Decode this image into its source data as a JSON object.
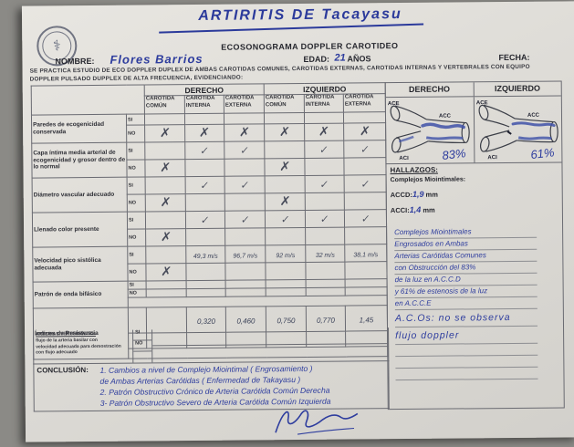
{
  "title_handwritten": "ARTIRITIS DE Tacayasu",
  "header": {
    "clinic_title": "ECOSONOGRAMA DOPPLER CAROTIDEO",
    "nombre_label": "NOMBRE:",
    "nombre_value": "Flores Barrios",
    "edad_label": "EDAD:",
    "edad_value": "21",
    "edad_suffix": "AÑOS",
    "fecha_label": "FECHA:",
    "procedure_text": "SE PRACTICA ESTUDIO DE ECO DOPPLER DUPLEX DE AMBAS CAROTIDAS COMUNES, CAROTIDAS EXTERNAS, CAROTIDAS INTERNAS Y VERTEBRALES CON EQUIPO DOPPLER PULSADO DUPPLEX DE ALTA FRECUENCIA, EVIDENCIANDO:"
  },
  "table": {
    "side_headers": [
      "DERECHO",
      "IZQUIERDO"
    ],
    "vessel_headers": [
      "CARÓTIDA COMÚN",
      "CARÓTIDA INTERNA",
      "CARÓTIDA EXTERNA",
      "CARÓTIDA COMÚN",
      "CARÓTIDA INTERNA",
      "CARÓTIDA EXTERNA"
    ],
    "si_label": "SI",
    "no_label": "NO",
    "rows": [
      {
        "label": "Paredes de ecogenicidad conservada",
        "si": [
          "",
          "",
          "",
          "",
          "",
          ""
        ],
        "no": [
          "✗",
          "✗",
          "✗",
          "✗",
          "✗",
          "✗"
        ]
      },
      {
        "label": "Capa íntima media arterial de ecogenicidad y grosor dentro de lo normal",
        "si": [
          "",
          "✓",
          "✓",
          "",
          "✓",
          "✓"
        ],
        "no": [
          "✗",
          "",
          "",
          "✗",
          "",
          ""
        ]
      },
      {
        "label": "Diámetro vascular adecuado",
        "si": [
          "",
          "✓",
          "✓",
          "",
          "✓",
          "✓"
        ],
        "no": [
          "✗",
          "",
          "",
          "✗",
          "",
          ""
        ]
      },
      {
        "label": "Llenado color presente",
        "si": [
          "",
          "✓",
          "✓",
          "✓",
          "✓",
          "✓"
        ],
        "no": [
          "✗",
          "",
          "",
          "",
          "",
          ""
        ]
      },
      {
        "label": "Velocidad pico sistólica adecuada",
        "si": [
          "",
          "49,3 m/s",
          "96,7 m/s",
          "92 m/s",
          "32 m/s",
          "38,1 m/s"
        ],
        "no": [
          "✗",
          "",
          "",
          "",
          "",
          ""
        ],
        "handwritten": true
      },
      {
        "label": "Patrón de onda bifásico",
        "si": [
          "",
          "",
          "",
          "",
          "",
          ""
        ],
        "no": [
          "",
          "",
          "",
          "",
          "",
          ""
        ],
        "thin": true,
        "spacer": true
      },
      {
        "label": "Índices de Resistencia",
        "si": [
          "",
          "0,320",
          "0,460",
          "0,750",
          "0,770",
          "1,45"
        ],
        "no": [
          "",
          "",
          "",
          "",
          "",
          ""
        ],
        "handwritten": true,
        "vals": true,
        "spacer": true,
        "hide_sino": true
      }
    ]
  },
  "vertebral": {
    "label_lines": [
      "ARTERIAS VERTEBRALES:",
      "flujo de la arteria basilar con",
      "velocidad adecuada para demostración",
      "con flujo adecuado"
    ],
    "si_label": "SI",
    "no_label": "NO"
  },
  "conclusion": {
    "label": "CONCLUSIÓN:",
    "lines": [
      "1.  Cambios a nivel de Complejo Miointimal ( Engrosamiento )",
      "      de Ambas Arterias Carótidas ( Enfermedad de Takayasu )",
      "2.  Patrón Obstructivo Crónico de Arteria Carótida Común Derecha",
      "3-  Patrón Obstructivo Severo de Arteria Carótida Común Izquierda"
    ]
  },
  "panel": {
    "derecho_label": "DERECHO",
    "izquierdo_label": "IZQUIERDO",
    "diagram_labels": {
      "ace": "ACE",
      "acc": "ACC",
      "aci": "ACI"
    },
    "derecho_pct": "83%",
    "izquierdo_pct": "61%",
    "hallazgos_label": "HALLAZGOS:",
    "subtitle": "Complejos Miointimales:",
    "accd_label": "ACCD:",
    "accd_value": "1,9",
    "accd_unit": "mm",
    "acci_label": "ACCI:",
    "acci_value": "1,4",
    "acci_unit": "mm",
    "notes": [
      "Complejos Miointimales",
      "Engrosados en Ambas",
      "Arterias Carótidas Comunes",
      "con Obstrucción del 83%",
      "de la luz en A.C.C.D",
      "y 61% de estenosis de la luz",
      "en A.C.C.E",
      "A.C.Os: no se observa",
      "flujo doppler"
    ]
  }
}
